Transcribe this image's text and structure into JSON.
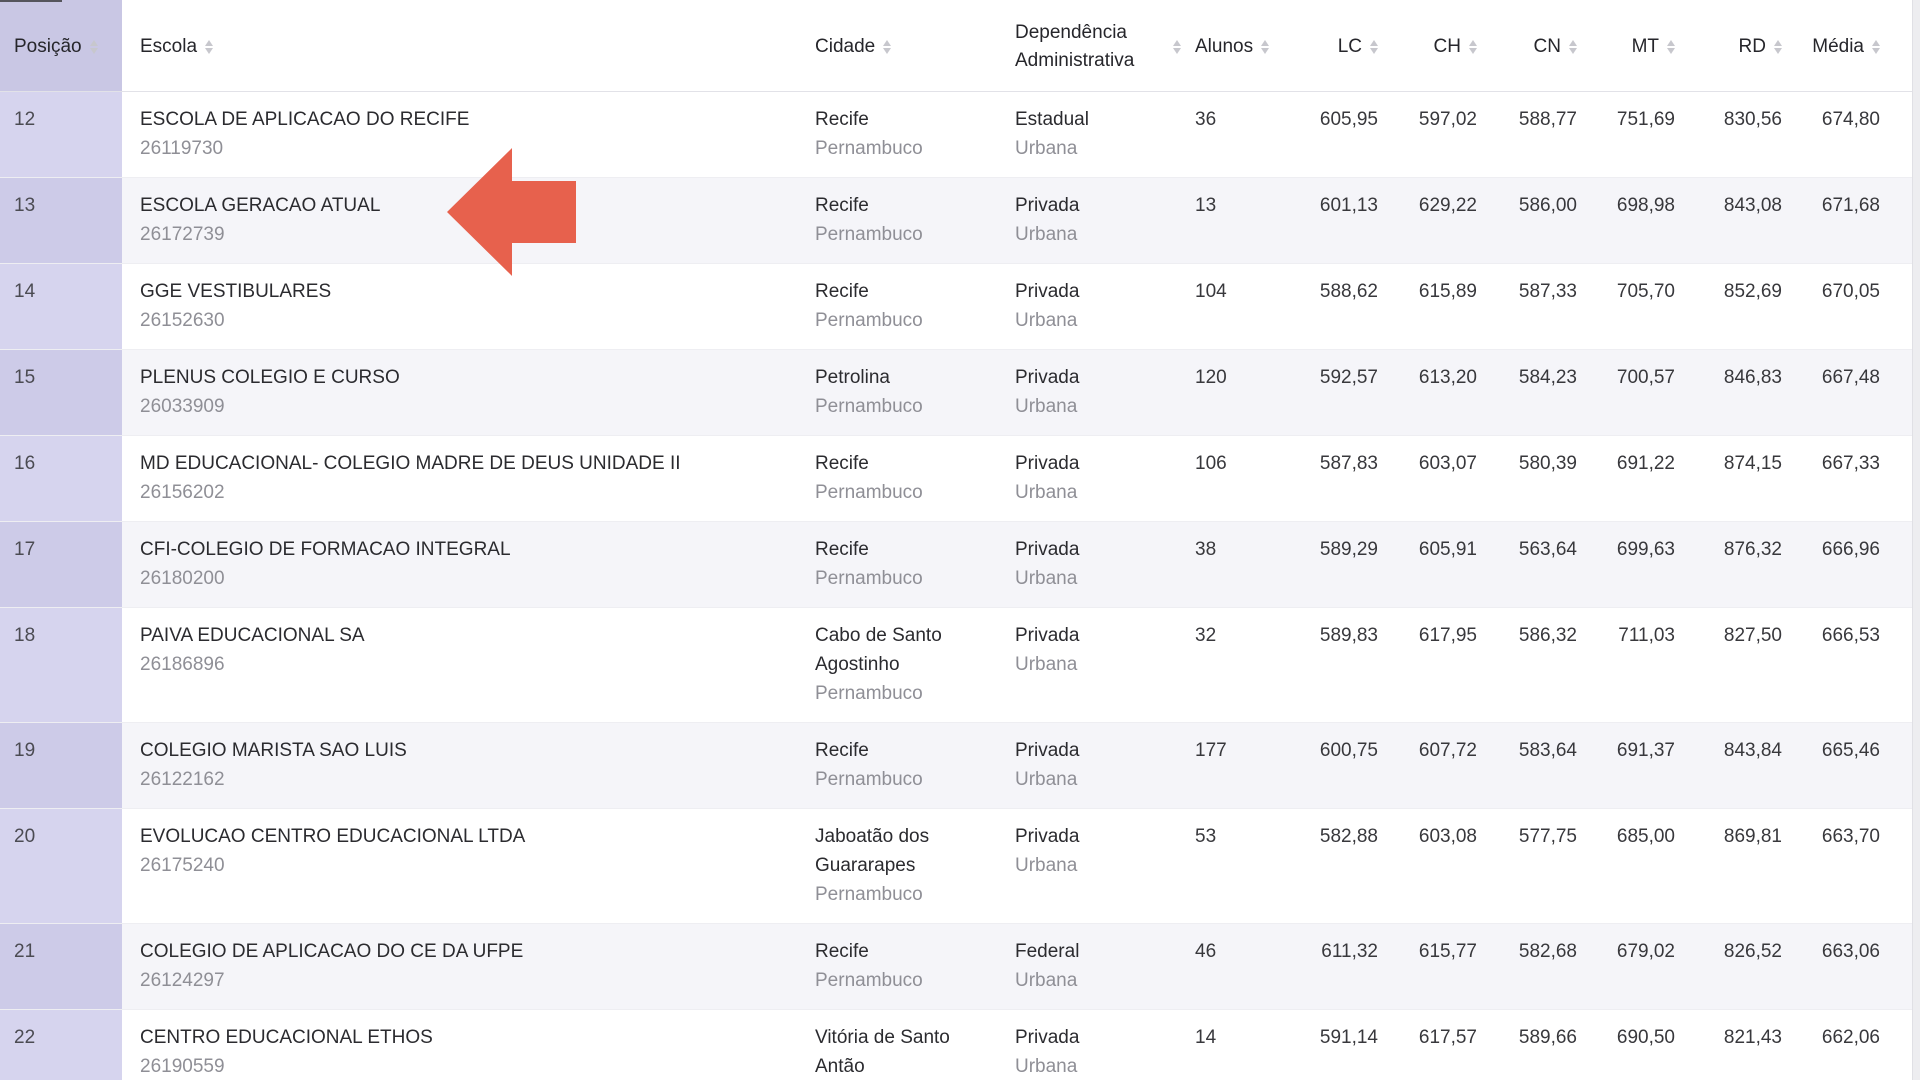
{
  "colors": {
    "arrow": "#e7614d",
    "pos-header": "#c9c7e4",
    "pos-light": "#d6d4ee",
    "pos-dark": "#cdcbe8",
    "row-stripe": "#f5f5f9"
  },
  "table": {
    "columns": [
      {
        "key": "posicao",
        "label": "Posição"
      },
      {
        "key": "escola",
        "label": "Escola"
      },
      {
        "key": "cidade",
        "label": "Cidade"
      },
      {
        "key": "dependencia",
        "label": "Dependência Administrativa"
      },
      {
        "key": "alunos",
        "label": "Alunos"
      },
      {
        "key": "lc",
        "label": "LC"
      },
      {
        "key": "ch",
        "label": "CH"
      },
      {
        "key": "cn",
        "label": "CN"
      },
      {
        "key": "mt",
        "label": "MT"
      },
      {
        "key": "rd",
        "label": "RD"
      },
      {
        "key": "media",
        "label": "Média"
      }
    ],
    "rows": [
      {
        "posicao": "12",
        "escola": "ESCOLA DE APLICACAO DO RECIFE",
        "codigo": "26119730",
        "cidade": "Recife",
        "estado": "Pernambuco",
        "dependencia": "Estadual",
        "zona": "Urbana",
        "alunos": "36",
        "lc": "605,95",
        "ch": "597,02",
        "cn": "588,77",
        "mt": "751,69",
        "rd": "830,56",
        "media": "674,80"
      },
      {
        "posicao": "13",
        "escola": "ESCOLA GERACAO ATUAL",
        "codigo": "26172739",
        "cidade": "Recife",
        "estado": "Pernambuco",
        "dependencia": "Privada",
        "zona": "Urbana",
        "alunos": "13",
        "lc": "601,13",
        "ch": "629,22",
        "cn": "586,00",
        "mt": "698,98",
        "rd": "843,08",
        "media": "671,68"
      },
      {
        "posicao": "14",
        "escola": "GGE VESTIBULARES",
        "codigo": "26152630",
        "cidade": "Recife",
        "estado": "Pernambuco",
        "dependencia": "Privada",
        "zona": "Urbana",
        "alunos": "104",
        "lc": "588,62",
        "ch": "615,89",
        "cn": "587,33",
        "mt": "705,70",
        "rd": "852,69",
        "media": "670,05"
      },
      {
        "posicao": "15",
        "escola": "PLENUS COLEGIO E CURSO",
        "codigo": "26033909",
        "cidade": "Petrolina",
        "estado": "Pernambuco",
        "dependencia": "Privada",
        "zona": "Urbana",
        "alunos": "120",
        "lc": "592,57",
        "ch": "613,20",
        "cn": "584,23",
        "mt": "700,57",
        "rd": "846,83",
        "media": "667,48"
      },
      {
        "posicao": "16",
        "escola": "MD EDUCACIONAL- COLEGIO MADRE DE DEUS UNIDADE II",
        "codigo": "26156202",
        "cidade": "Recife",
        "estado": "Pernambuco",
        "dependencia": "Privada",
        "zona": "Urbana",
        "alunos": "106",
        "lc": "587,83",
        "ch": "603,07",
        "cn": "580,39",
        "mt": "691,22",
        "rd": "874,15",
        "media": "667,33"
      },
      {
        "posicao": "17",
        "escola": "CFI-COLEGIO DE FORMACAO INTEGRAL",
        "codigo": "26180200",
        "cidade": "Recife",
        "estado": "Pernambuco",
        "dependencia": "Privada",
        "zona": "Urbana",
        "alunos": "38",
        "lc": "589,29",
        "ch": "605,91",
        "cn": "563,64",
        "mt": "699,63",
        "rd": "876,32",
        "media": "666,96"
      },
      {
        "posicao": "18",
        "escola": "PAIVA EDUCACIONAL SA",
        "codigo": "26186896",
        "cidade": "Cabo de Santo Agostinho",
        "estado": "Pernambuco",
        "dependencia": "Privada",
        "zona": "Urbana",
        "alunos": "32",
        "lc": "589,83",
        "ch": "617,95",
        "cn": "586,32",
        "mt": "711,03",
        "rd": "827,50",
        "media": "666,53"
      },
      {
        "posicao": "19",
        "escola": "COLEGIO MARISTA SAO LUIS",
        "codigo": "26122162",
        "cidade": "Recife",
        "estado": "Pernambuco",
        "dependencia": "Privada",
        "zona": "Urbana",
        "alunos": "177",
        "lc": "600,75",
        "ch": "607,72",
        "cn": "583,64",
        "mt": "691,37",
        "rd": "843,84",
        "media": "665,46"
      },
      {
        "posicao": "20",
        "escola": "EVOLUCAO CENTRO EDUCACIONAL LTDA",
        "codigo": "26175240",
        "cidade": "Jaboatão dos Guararapes",
        "estado": "Pernambuco",
        "dependencia": "Privada",
        "zona": "Urbana",
        "alunos": "53",
        "lc": "582,88",
        "ch": "603,08",
        "cn": "577,75",
        "mt": "685,00",
        "rd": "869,81",
        "media": "663,70"
      },
      {
        "posicao": "21",
        "escola": "COLEGIO DE APLICACAO DO CE DA UFPE",
        "codigo": "26124297",
        "cidade": "Recife",
        "estado": "Pernambuco",
        "dependencia": "Federal",
        "zona": "Urbana",
        "alunos": "46",
        "lc": "611,32",
        "ch": "615,77",
        "cn": "582,68",
        "mt": "679,02",
        "rd": "826,52",
        "media": "663,06"
      },
      {
        "posicao": "22",
        "escola": "CENTRO EDUCACIONAL ETHOS",
        "codigo": "26190559",
        "cidade": "Vitória de Santo Antão",
        "estado": "",
        "dependencia": "Privada",
        "zona": "Urbana",
        "alunos": "14",
        "lc": "591,14",
        "ch": "617,57",
        "cn": "589,66",
        "mt": "690,50",
        "rd": "821,43",
        "media": "662,06"
      }
    ]
  }
}
